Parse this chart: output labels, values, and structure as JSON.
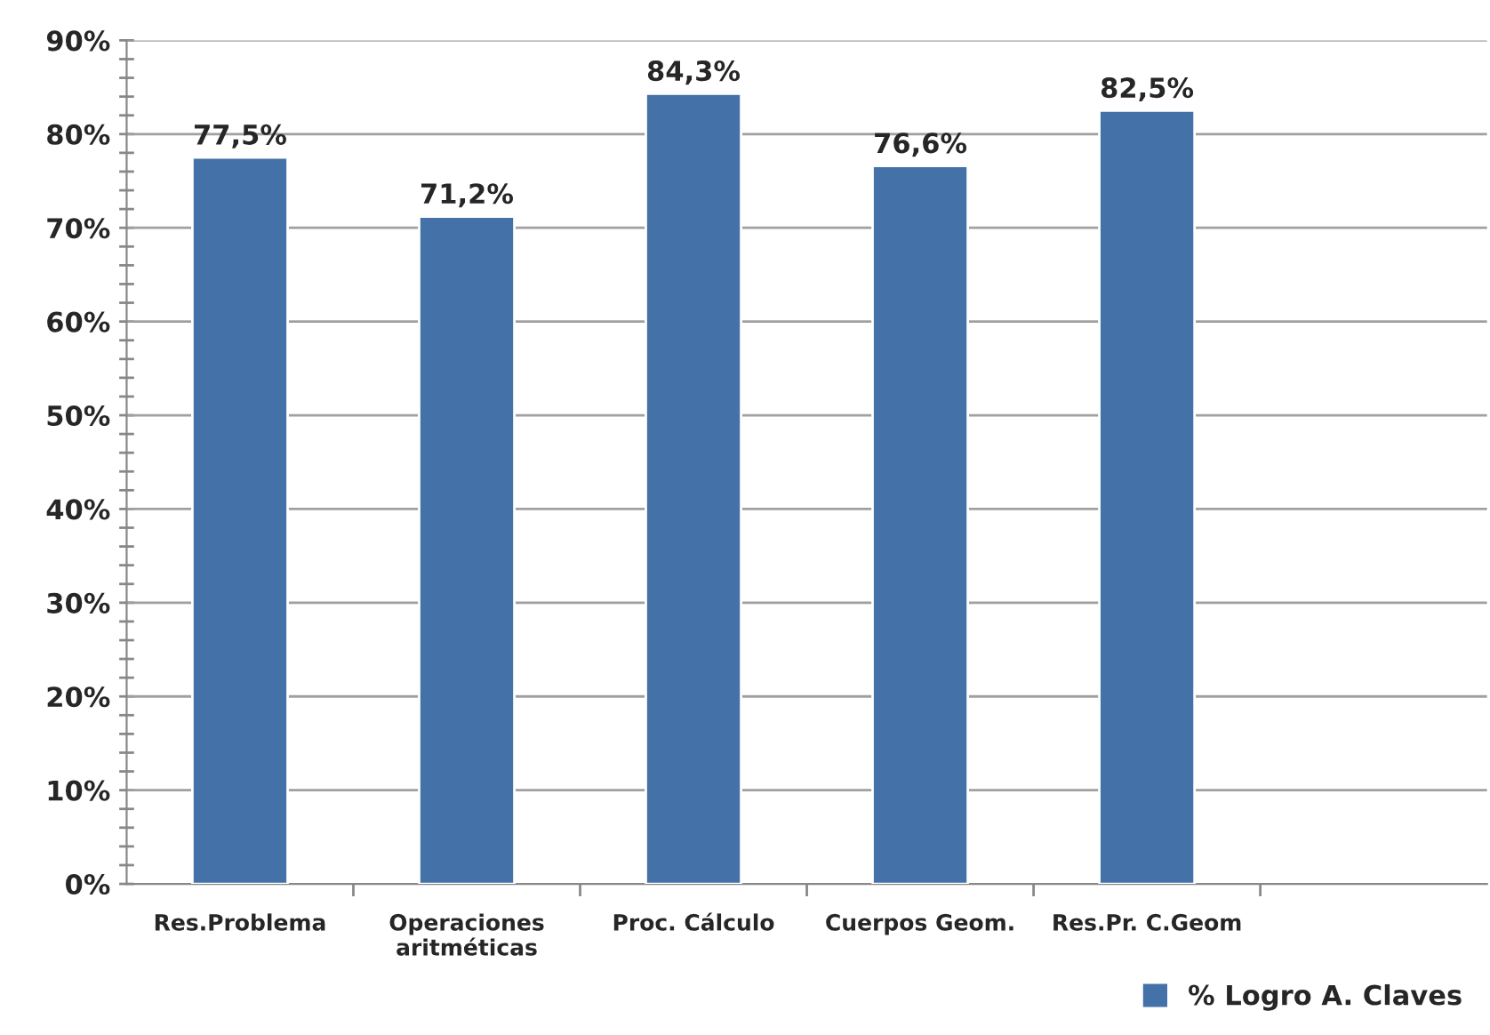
{
  "chart_data": {
    "type": "bar",
    "categories": [
      "Res.Problema",
      "Operaciones\naritméticas",
      "Proc. Cálculo",
      "Cuerpos Geom.",
      "Res.Pr. C.Geom",
      null
    ],
    "series": [
      {
        "name": "% Logro A. Claves",
        "color": "#4472a8",
        "values": [
          77.5,
          71.2,
          84.3,
          76.6,
          82.5,
          null
        ],
        "value_labels": [
          "77,5%",
          "71,2%",
          "84,3%",
          "76,6%",
          "82,5%",
          null
        ]
      }
    ],
    "ylim": [
      0,
      90
    ],
    "yticks": [
      {
        "value": 0,
        "label": "0%"
      },
      {
        "value": 2,
        "label": null
      },
      {
        "value": 4,
        "label": null
      },
      {
        "value": 6,
        "label": null
      },
      {
        "value": 8,
        "label": null
      },
      {
        "value": 10,
        "label": "10%"
      },
      {
        "value": 12,
        "label": null
      },
      {
        "value": 14,
        "label": null
      },
      {
        "value": 16,
        "label": null
      },
      {
        "value": 18,
        "label": null
      },
      {
        "value": 20,
        "label": "20%"
      },
      {
        "value": 22,
        "label": null
      },
      {
        "value": 24,
        "label": null
      },
      {
        "value": 26,
        "label": null
      },
      {
        "value": 28,
        "label": null
      },
      {
        "value": 30,
        "label": "30%"
      },
      {
        "value": 32,
        "label": null
      },
      {
        "value": 34,
        "label": null
      },
      {
        "value": 36,
        "label": null
      },
      {
        "value": 38,
        "label": null
      },
      {
        "value": 40,
        "label": "40%"
      },
      {
        "value": 42,
        "label": null
      },
      {
        "value": 44,
        "label": null
      },
      {
        "value": 46,
        "label": null
      },
      {
        "value": 48,
        "label": null
      },
      {
        "value": 50,
        "label": "50%"
      },
      {
        "value": 52,
        "label": null
      },
      {
        "value": 54,
        "label": null
      },
      {
        "value": 56,
        "label": null
      },
      {
        "value": 58,
        "label": null
      },
      {
        "value": 60,
        "label": "60%"
      },
      {
        "value": 62,
        "label": null
      },
      {
        "value": 64,
        "label": null
      },
      {
        "value": 66,
        "label": null
      },
      {
        "value": 68,
        "label": null
      },
      {
        "value": 70,
        "label": "70%"
      },
      {
        "value": 72,
        "label": null
      },
      {
        "value": 74,
        "label": null
      },
      {
        "value": 76,
        "label": null
      },
      {
        "value": 78,
        "label": null
      },
      {
        "value": 80,
        "label": "80%"
      },
      {
        "value": 82,
        "label": null
      },
      {
        "value": 84,
        "label": null
      },
      {
        "value": 86,
        "label": null
      },
      {
        "value": 88,
        "label": null
      },
      {
        "value": 90,
        "label": "90%"
      }
    ],
    "grid": "y",
    "legend": "bottom right"
  }
}
